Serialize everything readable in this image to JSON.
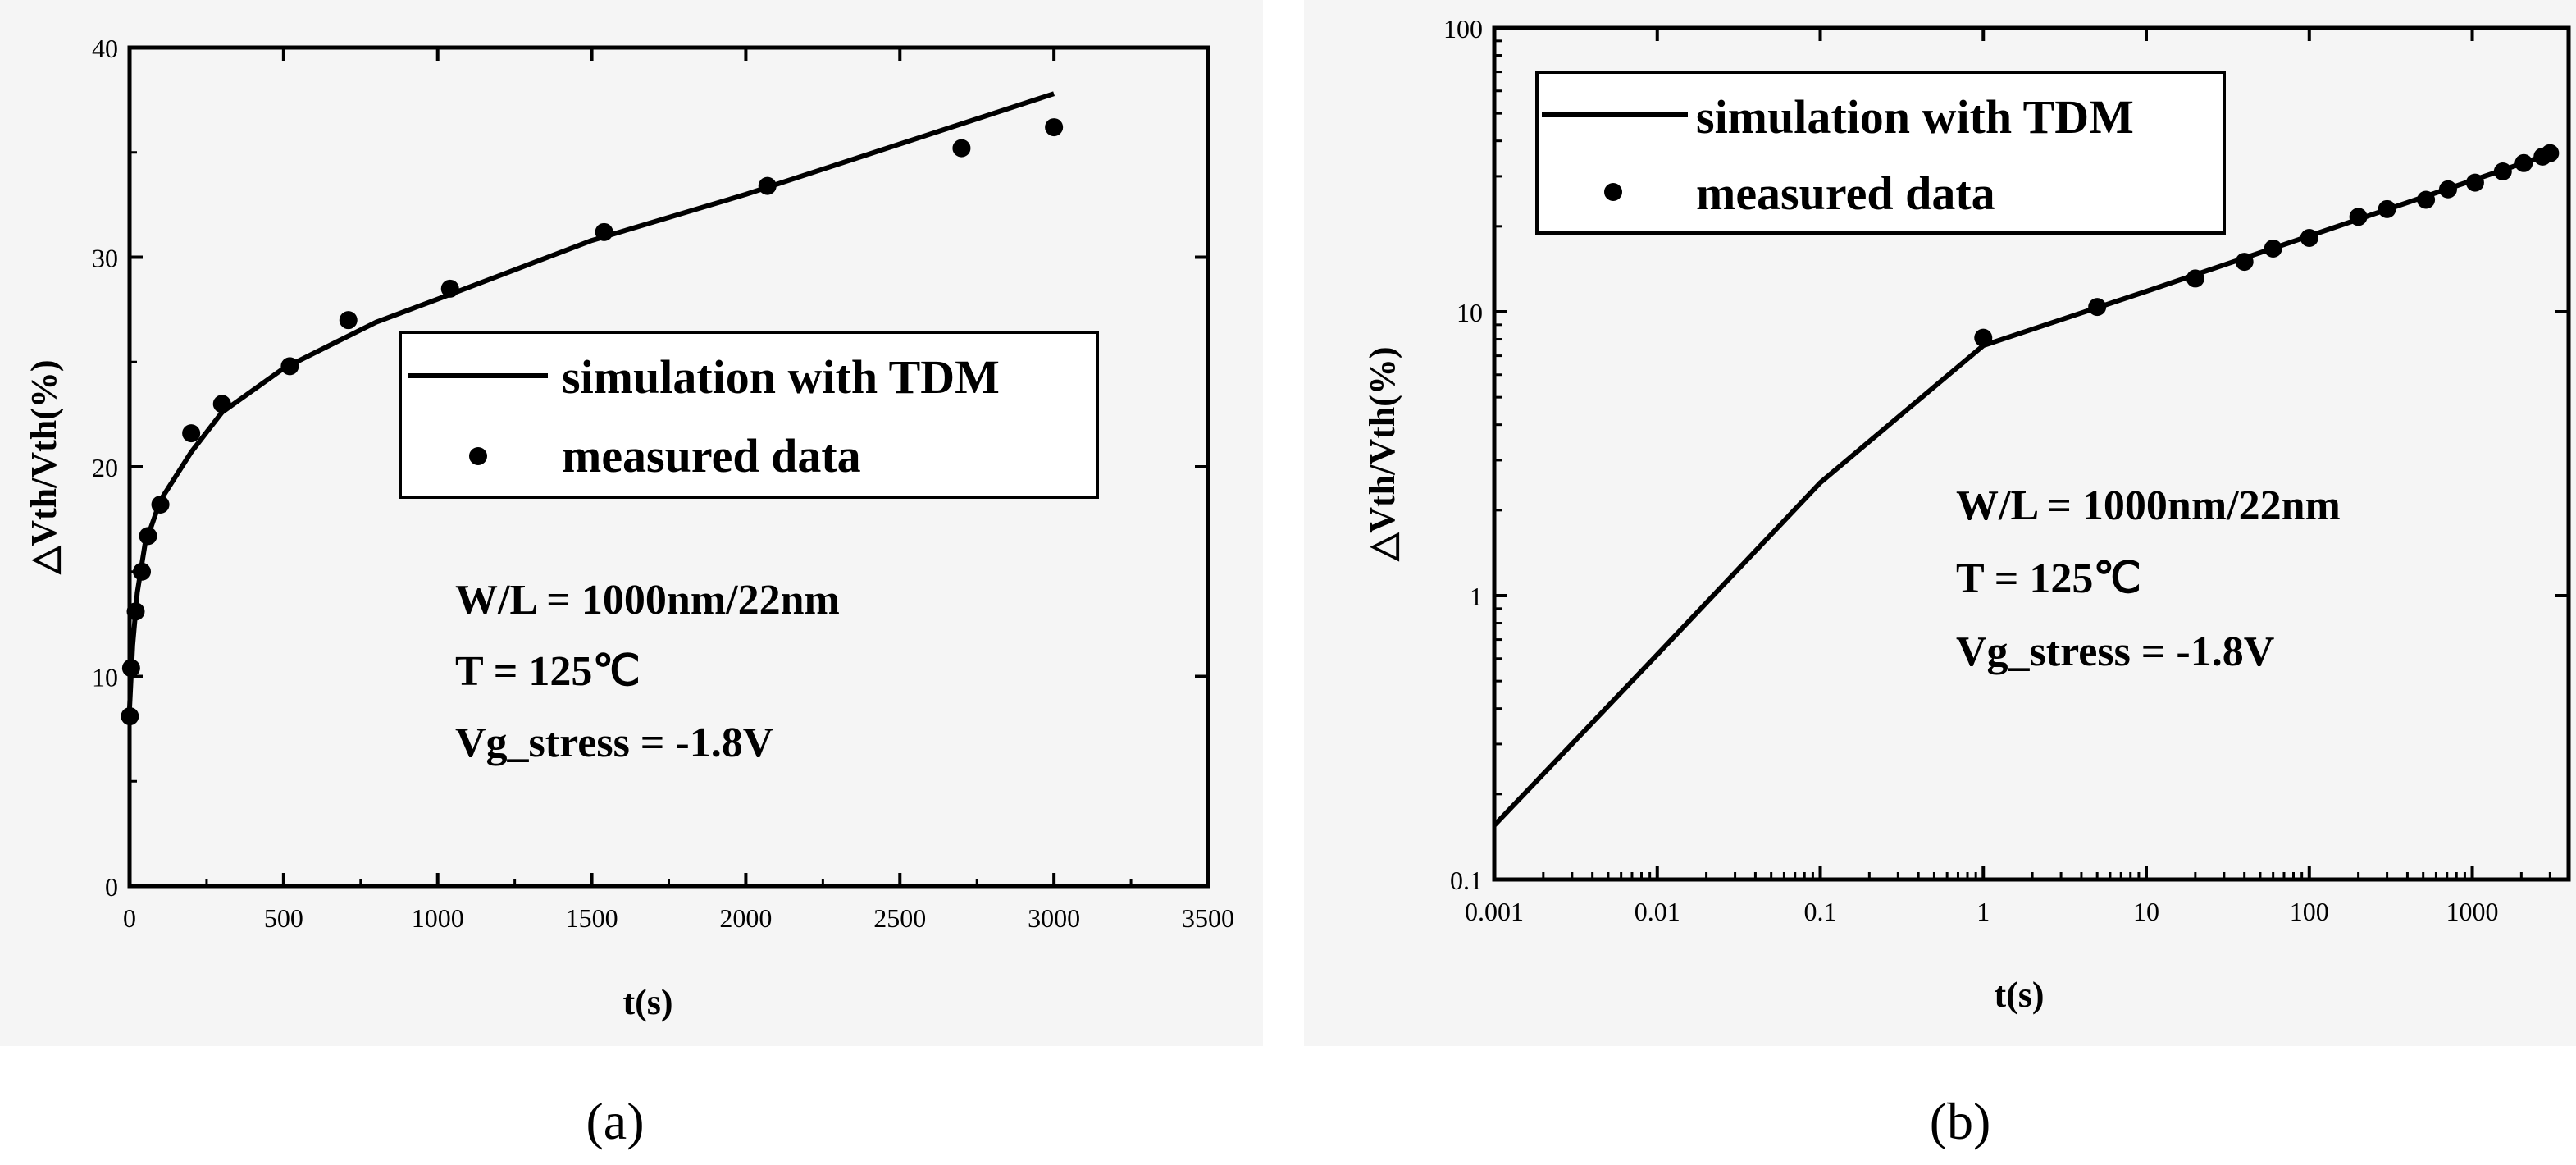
{
  "chart_data": [
    {
      "panel": "(a)",
      "type": "line",
      "xscale": "linear",
      "yscale": "linear",
      "xlabel": "t(s)",
      "ylabel": "△Vth/Vth(%)",
      "xlim": [
        0,
        3500
      ],
      "ylim": [
        0,
        40
      ],
      "xticks": [
        0,
        500,
        1000,
        1500,
        2000,
        2500,
        3000,
        3500
      ],
      "xtick_labels": [
        "0",
        "500",
        "1000",
        "1500",
        "2000",
        "2500",
        "3000",
        "3500"
      ],
      "yticks": [
        0,
        10,
        20,
        30,
        40
      ],
      "ytick_labels": [
        "0",
        "10",
        "20",
        "30",
        "40"
      ],
      "series": [
        {
          "name": "simulation with TDM",
          "style": "line",
          "x": [
            0,
            10,
            25,
            50,
            100,
            200,
            300,
            500,
            800,
            1000,
            1500,
            2000,
            2500,
            3000
          ],
          "y": [
            8.5,
            11.5,
            14.0,
            16.3,
            18.4,
            20.7,
            22.6,
            24.7,
            26.9,
            28.0,
            30.8,
            33.0,
            35.4,
            37.8
          ]
        },
        {
          "name": "measured data",
          "style": "markers",
          "x": [
            1,
            5,
            20,
            40,
            60,
            100,
            200,
            300,
            520,
            710,
            1040,
            1540,
            2070,
            2700,
            3000
          ],
          "y": [
            8.1,
            10.4,
            13.1,
            15.0,
            16.7,
            18.2,
            21.6,
            23.0,
            24.8,
            27.0,
            28.5,
            31.2,
            33.4,
            35.2,
            36.2
          ]
        }
      ],
      "legend": [
        "simulation with TDM",
        "measured data"
      ],
      "annotations": [
        "W/L = 1000nm/22nm",
        "T = 125℃",
        "Vg_stress = -1.8V"
      ]
    },
    {
      "panel": "(b)",
      "type": "line",
      "xscale": "log",
      "yscale": "log",
      "xlabel": "t(s)",
      "ylabel": "△Vth/Vth(%)",
      "xlim": [
        0.001,
        3900
      ],
      "ylim": [
        0.1,
        100
      ],
      "xticks": [
        0.001,
        0.01,
        0.1,
        1,
        10,
        100,
        1000
      ],
      "xtick_labels": [
        "0.001",
        "0.01",
        "0.1",
        "1",
        "10",
        "100",
        "1000"
      ],
      "yticks": [
        0.1,
        1,
        10,
        100
      ],
      "ytick_labels": [
        "0.1",
        "1",
        "10",
        "100"
      ],
      "series": [
        {
          "name": "simulation with TDM",
          "style": "line",
          "x": [
            0.001,
            0.01,
            0.1,
            1,
            10,
            100,
            1000,
            3000
          ],
          "y": [
            0.155,
            0.62,
            2.5,
            7.6,
            11.8,
            18.5,
            29.0,
            36.0
          ]
        },
        {
          "name": "measured data",
          "style": "markers",
          "x": [
            1,
            5,
            20,
            40,
            60,
            100,
            200,
            300,
            520,
            710,
            1040,
            1540,
            2070,
            2700,
            3000
          ],
          "y": [
            8.1,
            10.4,
            13.1,
            15.0,
            16.7,
            18.2,
            21.6,
            23.0,
            24.8,
            27.0,
            28.5,
            31.2,
            33.4,
            35.2,
            36.2
          ]
        }
      ],
      "legend": [
        "simulation with TDM",
        "measured data"
      ],
      "annotations": [
        "W/L = 1000nm/22nm",
        "T = 125℃",
        "Vg_stress = -1.8V"
      ]
    }
  ]
}
